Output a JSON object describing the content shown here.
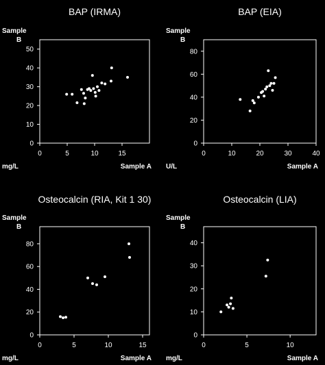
{
  "chart_data": [
    {
      "type": "scatter",
      "title": "BAP (IRMA)",
      "xlabel": "Sample A",
      "ylabel": "Sample B",
      "unit": "mg/L",
      "xlim": [
        0,
        20
      ],
      "ylim": [
        0,
        55
      ],
      "xticks": [
        0,
        5,
        10,
        15
      ],
      "yticks": [
        0,
        10,
        20,
        30,
        40,
        50
      ],
      "points": [
        {
          "x": 4.9,
          "y": 26
        },
        {
          "x": 5.9,
          "y": 26
        },
        {
          "x": 6.8,
          "y": 21.5
        },
        {
          "x": 7.6,
          "y": 28.5
        },
        {
          "x": 8.0,
          "y": 26.5
        },
        {
          "x": 8.1,
          "y": 21
        },
        {
          "x": 8.3,
          "y": 24
        },
        {
          "x": 8.7,
          "y": 28.5
        },
        {
          "x": 9.0,
          "y": 29
        },
        {
          "x": 9.3,
          "y": 28
        },
        {
          "x": 9.6,
          "y": 36
        },
        {
          "x": 9.8,
          "y": 29
        },
        {
          "x": 10.1,
          "y": 27
        },
        {
          "x": 10.2,
          "y": 25
        },
        {
          "x": 10.5,
          "y": 30
        },
        {
          "x": 10.8,
          "y": 28
        },
        {
          "x": 11.3,
          "y": 32
        },
        {
          "x": 11.9,
          "y": 31.5
        },
        {
          "x": 13.0,
          "y": 33
        },
        {
          "x": 13.1,
          "y": 40
        },
        {
          "x": 16.0,
          "y": 35
        }
      ]
    },
    {
      "type": "scatter",
      "title": "BAP (EIA)",
      "xlabel": "Sample A",
      "ylabel": "Sample B",
      "unit": "U/L",
      "xlim": [
        0,
        40
      ],
      "ylim": [
        0,
        90
      ],
      "xticks": [
        0,
        10,
        20,
        30,
        40
      ],
      "yticks": [
        0,
        20,
        40,
        60,
        80
      ],
      "points": [
        {
          "x": 13,
          "y": 38
        },
        {
          "x": 16.5,
          "y": 28
        },
        {
          "x": 17.5,
          "y": 37
        },
        {
          "x": 18,
          "y": 35
        },
        {
          "x": 19.5,
          "y": 40
        },
        {
          "x": 20.5,
          "y": 44
        },
        {
          "x": 21,
          "y": 45
        },
        {
          "x": 21.5,
          "y": 41
        },
        {
          "x": 22,
          "y": 47
        },
        {
          "x": 22.5,
          "y": 49
        },
        {
          "x": 23,
          "y": 63
        },
        {
          "x": 23.5,
          "y": 50
        },
        {
          "x": 24,
          "y": 52
        },
        {
          "x": 24.5,
          "y": 46
        },
        {
          "x": 25,
          "y": 52
        },
        {
          "x": 25.5,
          "y": 57
        }
      ]
    },
    {
      "type": "scatter",
      "title": "Osteocalcin (RIA, Kit 1 30)",
      "xlabel": "Sample A",
      "ylabel": "Sample B",
      "unit": "mg/L",
      "xlim": [
        0,
        16
      ],
      "ylim": [
        0,
        95
      ],
      "xticks": [
        0,
        5,
        10,
        15
      ],
      "yticks": [
        0,
        20,
        40,
        60,
        80
      ],
      "points": [
        {
          "x": 3.0,
          "y": 16
        },
        {
          "x": 3.4,
          "y": 15
        },
        {
          "x": 3.8,
          "y": 15.5
        },
        {
          "x": 7.0,
          "y": 50
        },
        {
          "x": 7.7,
          "y": 45
        },
        {
          "x": 8.3,
          "y": 44
        },
        {
          "x": 9.5,
          "y": 51
        },
        {
          "x": 13.0,
          "y": 80
        },
        {
          "x": 13.1,
          "y": 68
        }
      ]
    },
    {
      "type": "scatter",
      "title": "Osteocalcin (LIA)",
      "xlabel": "Sample A",
      "ylabel": "Sample B",
      "unit": "mg/L",
      "xlim": [
        0,
        13
      ],
      "ylim": [
        0,
        47
      ],
      "xticks": [
        0,
        5,
        10
      ],
      "yticks": [
        0,
        10,
        20,
        30,
        40
      ],
      "points": [
        {
          "x": 2.0,
          "y": 10
        },
        {
          "x": 2.7,
          "y": 13
        },
        {
          "x": 2.9,
          "y": 12
        },
        {
          "x": 3.1,
          "y": 13.5
        },
        {
          "x": 3.2,
          "y": 16
        },
        {
          "x": 3.4,
          "y": 11.5
        },
        {
          "x": 7.2,
          "y": 25.5
        },
        {
          "x": 7.4,
          "y": 32.5
        }
      ]
    }
  ]
}
